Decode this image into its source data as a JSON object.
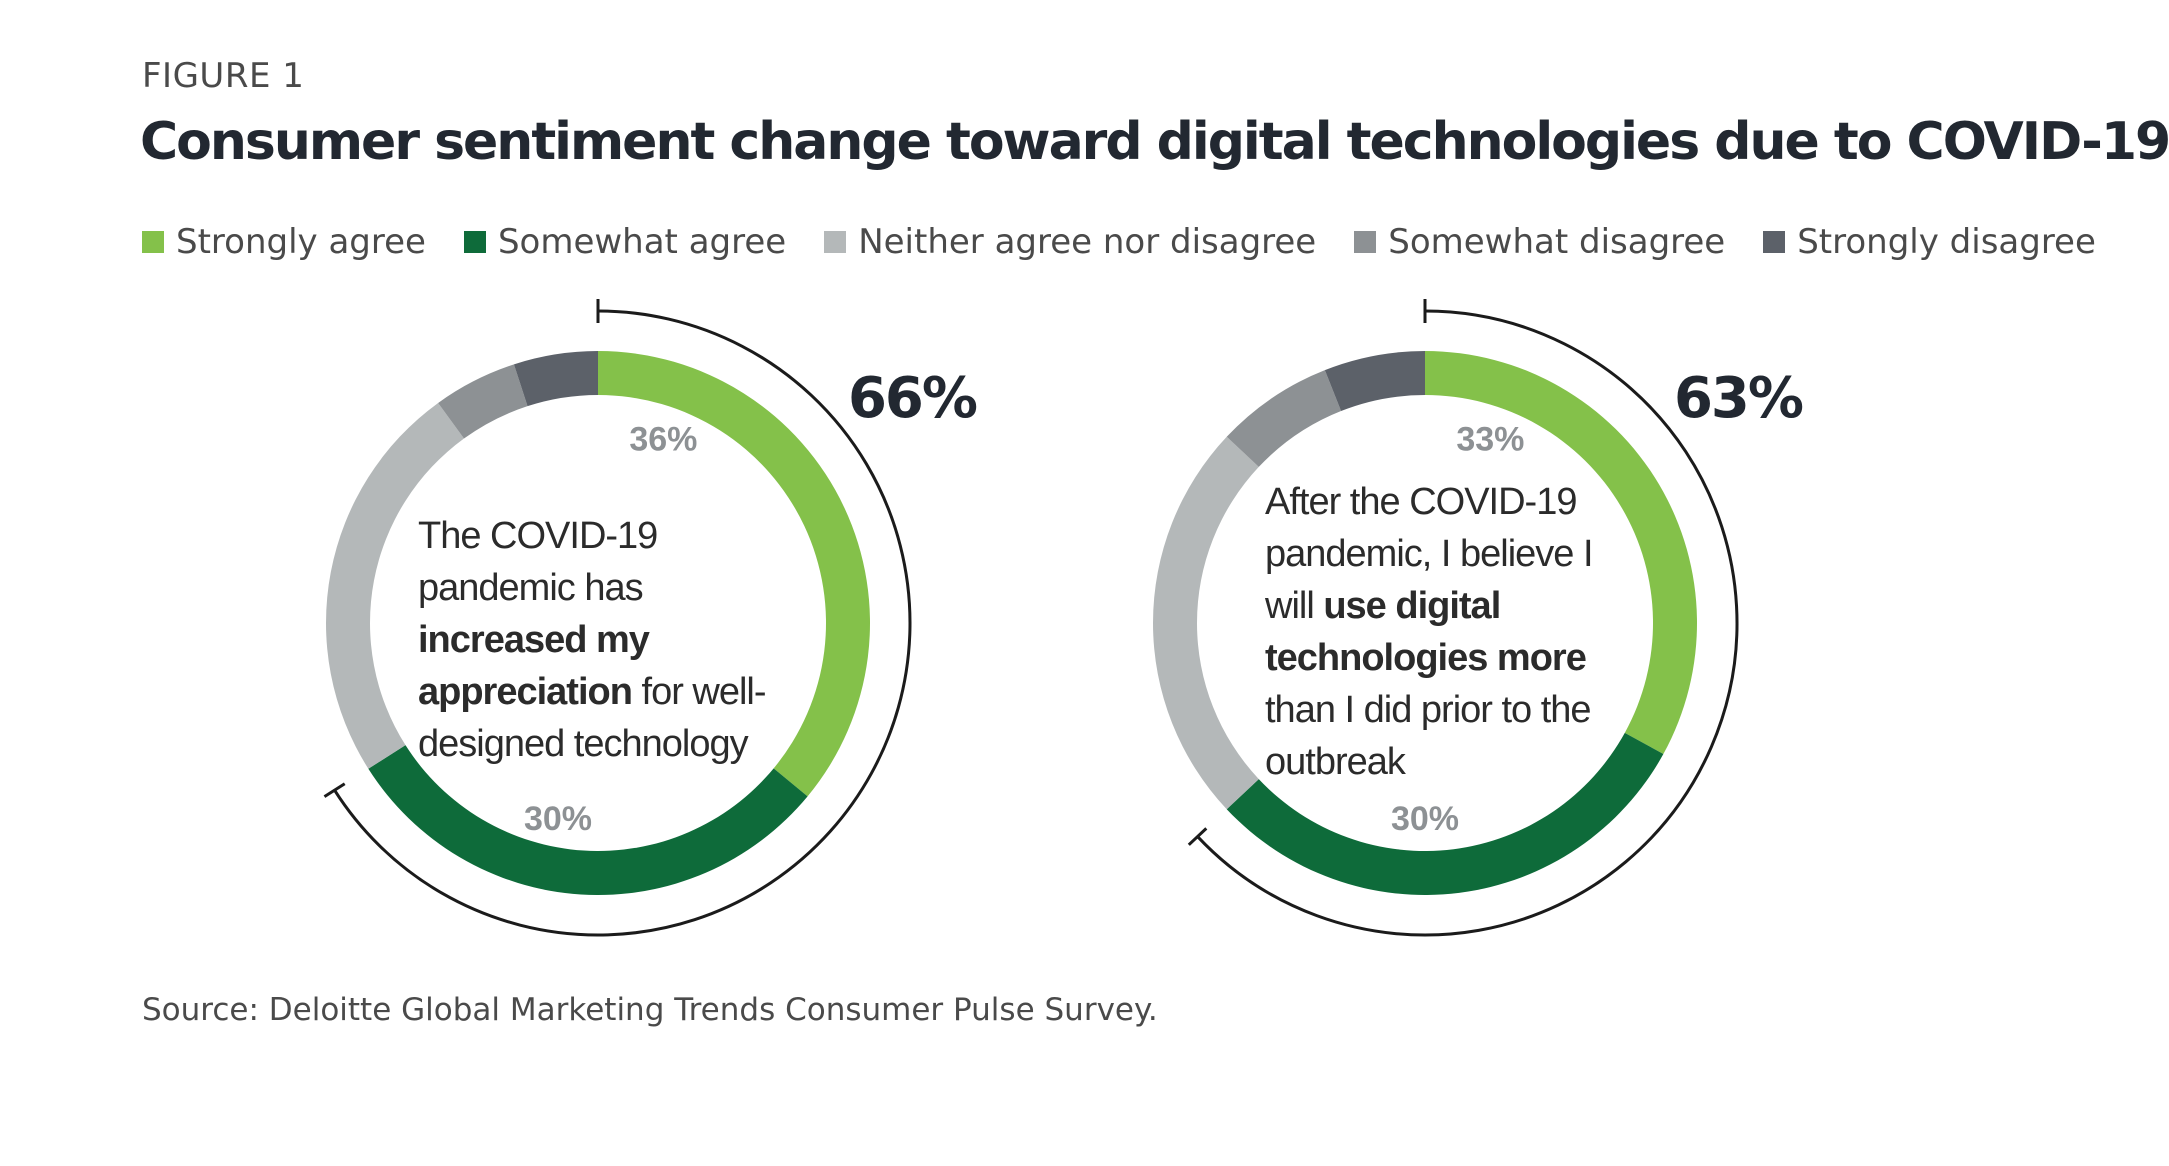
{
  "figure_label": "FIGURE 1",
  "chart_data": [
    {
      "type": "pie",
      "title": "Consumer sentiment change toward digital technologies due to COVID-19",
      "statement_parts": [
        {
          "text": "The COVID-19 pandemic has ",
          "bold": false
        },
        {
          "text": "increased my appreciation",
          "bold": true
        },
        {
          "text": " for well-designed technology",
          "bold": false
        }
      ],
      "categories": [
        "Strongly agree",
        "Somewhat agree",
        "Neither agree nor disagree",
        "Somewhat disagree",
        "Strongly disagree"
      ],
      "values": [
        36,
        30,
        24,
        5,
        5
      ],
      "labels": [
        "36%",
        "30%"
      ],
      "total_agree_label": "66%",
      "total_agree_value": 66
    },
    {
      "type": "pie",
      "title": "Consumer sentiment change toward digital technologies due to COVID-19",
      "statement_parts": [
        {
          "text": "After the COVID-19 pandemic, I believe I will ",
          "bold": false
        },
        {
          "text": "use digital technologies more",
          "bold": true
        },
        {
          "text": " than I did prior to the outbreak",
          "bold": false
        }
      ],
      "categories": [
        "Strongly agree",
        "Somewhat agree",
        "Neither agree nor disagree",
        "Somewhat disagree",
        "Strongly disagree"
      ],
      "values": [
        33,
        30,
        24,
        7,
        6
      ],
      "labels": [
        "33%",
        "30%"
      ],
      "total_agree_label": "63%",
      "total_agree_value": 63
    }
  ],
  "legend": [
    {
      "label": "Strongly agree",
      "color": "#84c14a"
    },
    {
      "label": "Somewhat agree",
      "color": "#0e6b3a"
    },
    {
      "label": "Neither agree nor disagree",
      "color": "#b4b8b9"
    },
    {
      "label": "Somewhat disagree",
      "color": "#8d9194"
    },
    {
      "label": "Strongly disagree",
      "color": "#5c6169"
    }
  ],
  "label_color": "#8d9194",
  "bracket_color": "#1b1b1b",
  "source": "Source: Deloitte Global Marketing Trends Consumer Pulse Survey."
}
